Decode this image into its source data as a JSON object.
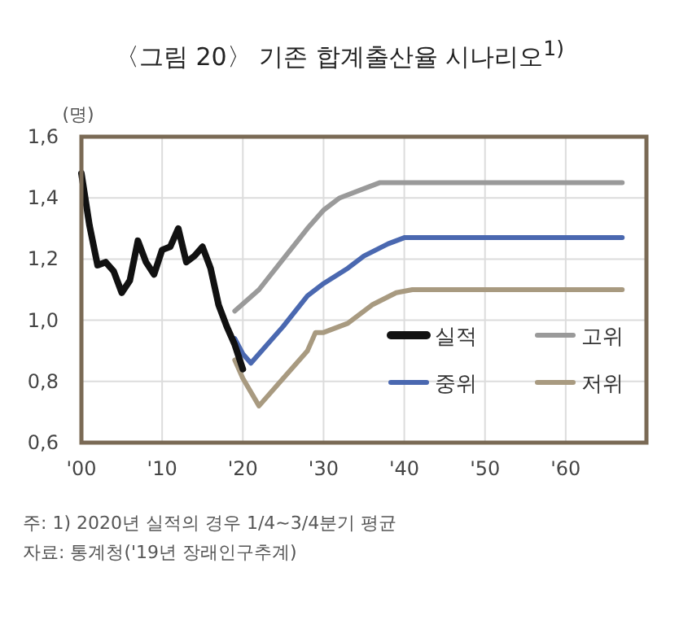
{
  "chart_data": {
    "type": "line",
    "title": "〈그림 20〉 기존 합계출산율 시나리오$^{1)}$",
    "ylabel": "(명)",
    "xlim": [
      2000,
      2070
    ],
    "xticks": [
      {
        "value": 2000,
        "label": "'00"
      },
      {
        "value": 2010,
        "label": "'10"
      },
      {
        "value": 2020,
        "label": "'20"
      },
      {
        "value": 2030,
        "label": "'30"
      },
      {
        "value": 2040,
        "label": "'40"
      },
      {
        "value": 2050,
        "label": "'50"
      },
      {
        "value": 2060,
        "label": "'60"
      }
    ],
    "ylim": [
      0.6,
      1.6
    ],
    "yticks": [
      {
        "value": 0.6,
        "label": "0,6"
      },
      {
        "value": 0.8,
        "label": "0,8"
      },
      {
        "value": 1.0,
        "label": "1,0"
      },
      {
        "value": 1.2,
        "label": "1,2"
      },
      {
        "value": 1.4,
        "label": "1,4"
      },
      {
        "value": 1.6,
        "label": "1,6"
      }
    ],
    "grid": true,
    "legend": "bottom right",
    "series": [
      {
        "name": "실적",
        "color": "#111111",
        "x": [
          2000,
          2001,
          2002,
          2003,
          2004,
          2005,
          2006,
          2007,
          2008,
          2009,
          2010,
          2011,
          2012,
          2013,
          2014,
          2015,
          2016,
          2017,
          2018,
          2019,
          2020
        ],
        "values": [
          1.48,
          1.31,
          1.18,
          1.19,
          1.16,
          1.09,
          1.13,
          1.26,
          1.19,
          1.15,
          1.23,
          1.24,
          1.3,
          1.19,
          1.21,
          1.24,
          1.17,
          1.05,
          0.98,
          0.92,
          0.84
        ]
      },
      {
        "name": "고위",
        "color": "#9a9a9a",
        "x": [
          2019,
          2022,
          2025,
          2028,
          2030,
          2032,
          2035,
          2037,
          2067
        ],
        "values": [
          1.03,
          1.1,
          1.2,
          1.3,
          1.36,
          1.4,
          1.43,
          1.45,
          1.45
        ]
      },
      {
        "name": "중위",
        "color": "#4a68b0",
        "x": [
          2019,
          2020,
          2021,
          2025,
          2028,
          2030,
          2033,
          2035,
          2038,
          2040,
          2067
        ],
        "values": [
          0.94,
          0.89,
          0.86,
          0.98,
          1.08,
          1.12,
          1.17,
          1.21,
          1.25,
          1.27,
          1.27
        ]
      },
      {
        "name": "저위",
        "color": "#a89a80",
        "x": [
          2019,
          2020,
          2022,
          2025,
          2028,
          2029,
          2030,
          2033,
          2036,
          2039,
          2041,
          2067
        ],
        "values": [
          0.87,
          0.81,
          0.72,
          0.81,
          0.9,
          0.96,
          0.96,
          0.99,
          1.05,
          1.09,
          1.1,
          1.1
        ]
      }
    ],
    "annotations": [
      "주: 1) 2020년 실적의 경우 1/4~3/4분기 평균",
      "자료: 통계청('19년 장래인구추계)"
    ]
  }
}
